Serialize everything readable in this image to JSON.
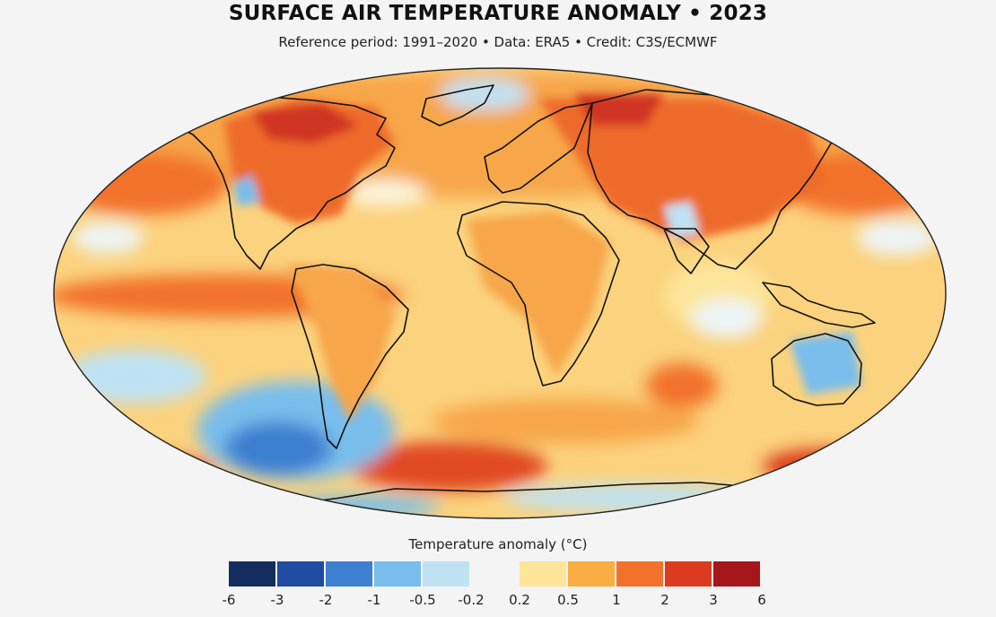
{
  "title": "SURFACE AIR TEMPERATURE ANOMALY • 2023",
  "subtitle": "Reference period: 1991–2020 • Data: ERA5 • Credit: C3S/ECMWF",
  "legend": {
    "title": "Temperature anomaly (°C)",
    "bins": [
      {
        "color": "#142f5f"
      },
      {
        "color": "#1f4ca0"
      },
      {
        "color": "#3d7fd0"
      },
      {
        "color": "#78bdec"
      },
      {
        "color": "#bfe2f3"
      },
      {
        "color": "#f4f4f4"
      },
      {
        "color": "#fde59a"
      },
      {
        "color": "#f9ad42"
      },
      {
        "color": "#f2722b"
      },
      {
        "color": "#db3b1f"
      },
      {
        "color": "#a6171b"
      }
    ],
    "ticks": [
      "-6",
      "-3",
      "-2",
      "-1",
      "-0.5",
      "-0.2",
      "0.2",
      "0.5",
      "1",
      "2",
      "3",
      "6"
    ]
  },
  "map_colors": {
    "ocean_base": "#fbd27d",
    "warm": "#f7a64a",
    "hot": "#ee6a2c",
    "very_hot": "#cf3420",
    "cool": "#bfe2f3",
    "cold": "#5fa6e0",
    "coast": "#111111"
  }
}
